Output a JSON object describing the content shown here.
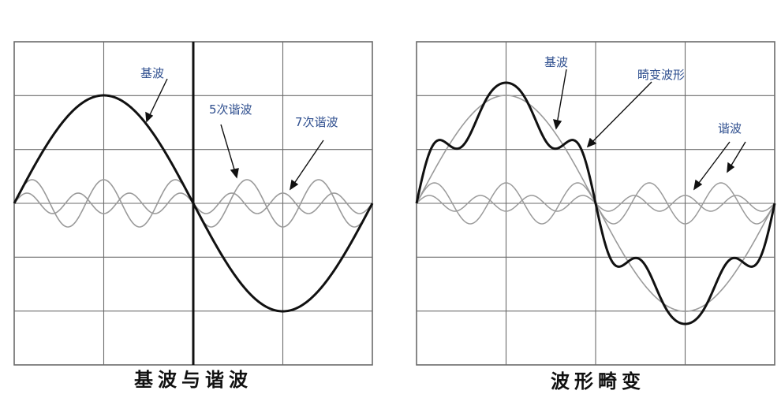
{
  "left_panel": {
    "caption": "基波与谐波",
    "labels": {
      "fundamental": "基波",
      "harmonic5": "5次谐波",
      "harmonic7": "7次谐波"
    }
  },
  "right_panel": {
    "caption": "波形畸变",
    "labels": {
      "fundamental": "基波",
      "distorted": "畸变波形",
      "harmonic": "谐波"
    }
  },
  "colors": {
    "grid": "#6b6b6b",
    "heavy_wave": "#111111",
    "thin_wave": "#9a9a9a",
    "label": "#2f4f8f"
  }
}
